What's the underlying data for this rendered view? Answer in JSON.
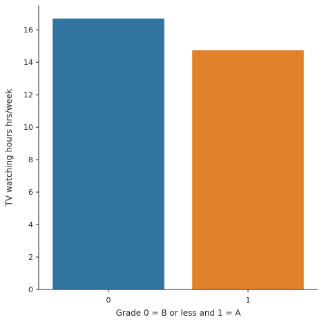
{
  "chart_data": {
    "type": "bar",
    "categories": [
      "0",
      "1"
    ],
    "values": [
      16.7,
      14.75
    ],
    "colors": [
      "#3274a1",
      "#e1812c"
    ],
    "xlabel": "Grade 0 = B or less and 1 = A",
    "ylabel": "TV watching hours hrs/week",
    "ylim": [
      0,
      17.5
    ],
    "yticks": [
      0,
      2,
      4,
      6,
      8,
      10,
      12,
      14,
      16
    ],
    "grid": false,
    "legend": "none",
    "spines": "left-bottom"
  }
}
